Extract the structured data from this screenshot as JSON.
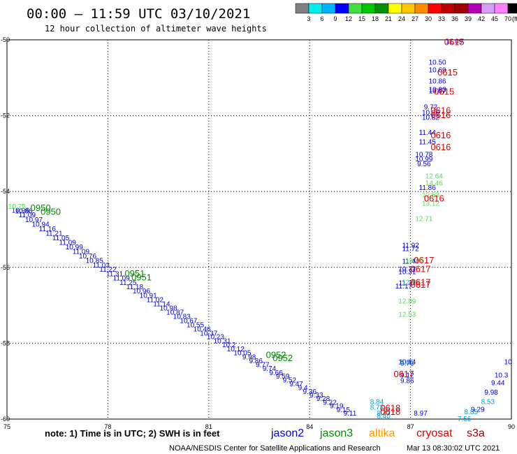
{
  "header": {
    "title": "00:00 – 11:59 UTC 03/10/2021",
    "subtitle": "12 hour collection of altimeter wave heights"
  },
  "colorbar": {
    "colors": [
      "#808080",
      "#00f0f0",
      "#00b4ff",
      "#0000ff",
      "#40e040",
      "#00c800",
      "#009000",
      "#ffff00",
      "#ffc800",
      "#ff8c00",
      "#ff0000",
      "#c00000",
      "#a00000",
      "#b400b4",
      "#d4a0f0",
      "#ff80ff",
      "#000000"
    ],
    "ticks": [
      "3",
      "6",
      "9",
      "12",
      "15",
      "18",
      "21",
      "24",
      "27",
      "30",
      "33",
      "36",
      "39",
      "42",
      "45",
      "70"
    ],
    "unit": "(ft)"
  },
  "footer": {
    "note": "note: 1) Time is in UTC; 2) SWH is in feet",
    "credit": "NOAA/NESDIS Center for Satellite Applications and Research",
    "timestamp": "Mar 13 08:30:02 UTC 2021",
    "legend": [
      {
        "name": "jason2",
        "color": "#0000e0"
      },
      {
        "name": "jason3",
        "color": "#008c00"
      },
      {
        "name": "altika",
        "color": "#ff9600"
      },
      {
        "name": "cryosat",
        "color": "#e00000"
      },
      {
        "name": "s3a",
        "color": "#a00000"
      }
    ]
  },
  "chart_data": {
    "type": "scatter",
    "xlim": [
      75,
      90
    ],
    "ylim": [
      -60,
      -50
    ],
    "x_ticks": [
      "75",
      "78",
      "81",
      "84",
      "87",
      "90"
    ],
    "y_ticks": [
      "-50",
      "-52",
      "-54",
      "-56",
      "-58",
      "-60"
    ],
    "grid": true,
    "track_labels": [
      {
        "text": "0950",
        "x": 76.0,
        "y": -54.42,
        "color": "#008c00"
      },
      {
        "text": "0950",
        "x": 76.3,
        "y": -54.52,
        "color": "#008c00"
      },
      {
        "text": "0951",
        "x": 78.8,
        "y": -56.15,
        "color": "#008c00"
      },
      {
        "text": "0951",
        "x": 79.0,
        "y": -56.25,
        "color": "#008c00"
      },
      {
        "text": "0952",
        "x": 83.0,
        "y": -58.3,
        "color": "#008c00"
      },
      {
        "text": "0952",
        "x": 83.2,
        "y": -58.38,
        "color": "#008c00"
      },
      {
        "text": "0615",
        "x": 88.3,
        "y": -50.05,
        "color": "#e00000"
      },
      {
        "text": "0615",
        "x": 88.1,
        "y": -50.85,
        "color": "#e00000"
      },
      {
        "text": "0615",
        "x": 88.0,
        "y": -51.35,
        "color": "#e00000"
      },
      {
        "text": "0616",
        "x": 87.9,
        "y": -51.85,
        "color": "#e00000"
      },
      {
        "text": "0616",
        "x": 87.9,
        "y": -51.97,
        "color": "#e00000"
      },
      {
        "text": "0616",
        "x": 87.9,
        "y": -52.5,
        "color": "#e00000"
      },
      {
        "text": "0616",
        "x": 87.9,
        "y": -52.82,
        "color": "#e00000"
      },
      {
        "text": "0616",
        "x": 87.7,
        "y": -54.17,
        "color": "#e00000"
      },
      {
        "text": "0617",
        "x": 87.4,
        "y": -55.8,
        "color": "#e00000"
      },
      {
        "text": "0617",
        "x": 87.3,
        "y": -56.03,
        "color": "#e00000"
      },
      {
        "text": "0617",
        "x": 87.3,
        "y": -56.38,
        "color": "#e00000"
      },
      {
        "text": "0617",
        "x": 87.3,
        "y": -56.45,
        "color": "#e00000"
      },
      {
        "text": "0617",
        "x": 86.8,
        "y": -58.8,
        "color": "#e00000"
      },
      {
        "text": "0618",
        "x": 86.4,
        "y": -59.7,
        "color": "#e00000"
      },
      {
        "text": "0618",
        "x": 86.4,
        "y": -59.8,
        "color": "#e00000"
      }
    ],
    "series": [
      {
        "name": "jason2",
        "color": "#0000e0",
        "points": [
          {
            "x": 75.4,
            "y": -54.5,
            "label": "10.96"
          },
          {
            "x": 75.6,
            "y": -54.62,
            "label": "11.09"
          },
          {
            "x": 75.8,
            "y": -54.75,
            "label": "10.97"
          },
          {
            "x": 76.0,
            "y": -54.87,
            "label": "10.94"
          },
          {
            "x": 76.2,
            "y": -54.99,
            "label": "11.16"
          },
          {
            "x": 76.4,
            "y": -55.11,
            "label": "11.21"
          },
          {
            "x": 76.6,
            "y": -55.23,
            "label": "11.05"
          },
          {
            "x": 76.8,
            "y": -55.35,
            "label": "11.09"
          },
          {
            "x": 77.0,
            "y": -55.47,
            "label": "10.99"
          },
          {
            "x": 77.2,
            "y": -55.59,
            "label": "11.09"
          },
          {
            "x": 77.4,
            "y": -55.71,
            "label": "10.76"
          },
          {
            "x": 77.6,
            "y": -55.83,
            "label": "10.85"
          },
          {
            "x": 77.8,
            "y": -55.95,
            "label": "11.03"
          },
          {
            "x": 78.0,
            "y": -56.06,
            "label": "11.22"
          },
          {
            "x": 78.2,
            "y": -56.18,
            "label": "11.31"
          },
          {
            "x": 78.4,
            "y": -56.29,
            "label": "11.09"
          },
          {
            "x": 78.6,
            "y": -56.41,
            "label": "11.25"
          },
          {
            "x": 78.8,
            "y": -56.52,
            "label": "11.18"
          },
          {
            "x": 79.0,
            "y": -56.63,
            "label": "10.96"
          },
          {
            "x": 79.2,
            "y": -56.75,
            "label": "10.91"
          },
          {
            "x": 79.4,
            "y": -56.86,
            "label": "11.02"
          },
          {
            "x": 79.6,
            "y": -56.97,
            "label": "11.14"
          },
          {
            "x": 79.8,
            "y": -57.08,
            "label": "10.98"
          },
          {
            "x": 80.0,
            "y": -57.19,
            "label": "10.87"
          },
          {
            "x": 80.2,
            "y": -57.3,
            "label": "10.83"
          },
          {
            "x": 80.4,
            "y": -57.41,
            "label": "10.67"
          },
          {
            "x": 80.6,
            "y": -57.52,
            "label": "10.55"
          },
          {
            "x": 80.8,
            "y": -57.63,
            "label": "10.46"
          },
          {
            "x": 81.0,
            "y": -57.74,
            "label": "10.37"
          },
          {
            "x": 81.2,
            "y": -57.84,
            "label": "10.23"
          },
          {
            "x": 81.4,
            "y": -57.95,
            "label": "10.31"
          },
          {
            "x": 81.6,
            "y": -58.05,
            "label": "10.2"
          },
          {
            "x": 81.8,
            "y": -58.16,
            "label": "10.12"
          },
          {
            "x": 82.0,
            "y": -58.26,
            "label": "10.05"
          },
          {
            "x": 82.2,
            "y": -58.37,
            "label": "9.98"
          },
          {
            "x": 82.4,
            "y": -58.47,
            "label": "9.86"
          },
          {
            "x": 82.6,
            "y": -58.57,
            "label": "9.77"
          },
          {
            "x": 82.8,
            "y": -58.67,
            "label": "9.74"
          },
          {
            "x": 83.0,
            "y": -58.78,
            "label": "9.66"
          },
          {
            "x": 83.2,
            "y": -58.88,
            "label": "9.59"
          },
          {
            "x": 83.4,
            "y": -58.98,
            "label": "9.52"
          },
          {
            "x": 83.6,
            "y": -59.08,
            "label": "9.47"
          },
          {
            "x": 83.8,
            "y": -59.18,
            "label": "9.4"
          },
          {
            "x": 84.0,
            "y": -59.28,
            "label": "9.36"
          },
          {
            "x": 84.2,
            "y": -59.37,
            "label": "9.33"
          },
          {
            "x": 84.4,
            "y": -59.47,
            "label": "9.28"
          },
          {
            "x": 84.6,
            "y": -59.57,
            "label": "9.22"
          },
          {
            "x": 84.8,
            "y": -59.66,
            "label": "9.19"
          },
          {
            "x": 85.0,
            "y": -59.76,
            "label": "9.15"
          },
          {
            "x": 85.2,
            "y": -59.85,
            "label": "9.11"
          },
          {
            "x": 75.5,
            "y": -54.52,
            "label": "10.86"
          },
          {
            "x": 86.9,
            "y": -58.5,
            "label": "10.14"
          },
          {
            "x": 86.9,
            "y": -58.54,
            "label": "9.79"
          },
          {
            "x": 86.9,
            "y": -59.0,
            "label": "9.86"
          },
          {
            "x": 86.9,
            "y": -58.85,
            "label": "9.12"
          },
          {
            "x": 87.3,
            "y": -59.85,
            "label": "8.97"
          },
          {
            "x": 88.3,
            "y": -50.05,
            "label": "11.09"
          },
          {
            "x": 87.8,
            "y": -50.6,
            "label": "10.50"
          },
          {
            "x": 87.8,
            "y": -50.8,
            "label": "10.69"
          },
          {
            "x": 87.8,
            "y": -51.1,
            "label": "10.86"
          },
          {
            "x": 87.8,
            "y": -51.35,
            "label": "10.97"
          },
          {
            "x": 87.8,
            "y": -51.32,
            "label": "10.93"
          },
          {
            "x": 87.6,
            "y": -51.78,
            "label": "9.72"
          },
          {
            "x": 87.6,
            "y": -51.92,
            "label": "10.26"
          },
          {
            "x": 87.6,
            "y": -52.05,
            "label": "10.82"
          },
          {
            "x": 87.5,
            "y": -52.45,
            "label": "11.44"
          },
          {
            "x": 87.5,
            "y": -52.7,
            "label": "11.45"
          },
          {
            "x": 87.4,
            "y": -53.03,
            "label": "10.78"
          },
          {
            "x": 87.4,
            "y": -53.15,
            "label": "10.99"
          },
          {
            "x": 87.4,
            "y": -53.28,
            "label": "9.56"
          },
          {
            "x": 87.5,
            "y": -53.9,
            "label": "11.86"
          },
          {
            "x": 87.0,
            "y": -55.42,
            "label": "11.92"
          },
          {
            "x": 87.0,
            "y": -55.52,
            "label": "11.72"
          },
          {
            "x": 87.0,
            "y": -55.85,
            "label": "11.44"
          },
          {
            "x": 86.9,
            "y": -56.05,
            "label": "10.71"
          },
          {
            "x": 86.9,
            "y": -56.12,
            "label": "10.31"
          },
          {
            "x": 86.9,
            "y": -56.42,
            "label": "11.37"
          },
          {
            "x": 86.8,
            "y": -56.5,
            "label": "11.17"
          },
          {
            "x": 89.6,
            "y": -59.05,
            "label": "9.44"
          },
          {
            "x": 89.7,
            "y": -58.85,
            "label": "10.3"
          },
          {
            "x": 89.9,
            "y": -58.5,
            "label": "10"
          },
          {
            "x": 89.4,
            "y": -59.3,
            "label": "9.98"
          },
          {
            "x": 89.0,
            "y": -59.75,
            "label": "9.29"
          }
        ]
      },
      {
        "name": "jason3",
        "color": "#50e050",
        "points": [
          {
            "x": 75.3,
            "y": -54.4,
            "label": "10.75"
          },
          {
            "x": 87.7,
            "y": -53.6,
            "label": "12.64"
          },
          {
            "x": 87.7,
            "y": -53.78,
            "label": "14.46"
          },
          {
            "x": 87.6,
            "y": -54.1,
            "label": "12.63"
          },
          {
            "x": 87.6,
            "y": -54.32,
            "label": "13.12"
          },
          {
            "x": 87.4,
            "y": -54.72,
            "label": "12.71"
          },
          {
            "x": 87.1,
            "y": -55.83,
            "label": "13.30"
          },
          {
            "x": 87.0,
            "y": -56.4,
            "label": "12.76"
          },
          {
            "x": 86.9,
            "y": -56.9,
            "label": "12.89"
          },
          {
            "x": 86.9,
            "y": -57.25,
            "label": "12.53"
          }
        ]
      },
      {
        "name": "s3a",
        "color": "#00a0e0",
        "points": [
          {
            "x": 86.9,
            "y": -58.5,
            "label": "8.65"
          },
          {
            "x": 86.0,
            "y": -59.55,
            "label": "8.84"
          },
          {
            "x": 86.0,
            "y": -59.7,
            "label": "8.73"
          },
          {
            "x": 86.2,
            "y": -59.85,
            "label": "8.47"
          },
          {
            "x": 86.2,
            "y": -59.93,
            "label": "8.40"
          },
          {
            "x": 89.3,
            "y": -59.55,
            "label": "8.53"
          },
          {
            "x": 88.8,
            "y": -59.82,
            "label": "8.85"
          },
          {
            "x": 88.6,
            "y": -60.0,
            "label": "7.56"
          }
        ]
      }
    ]
  }
}
